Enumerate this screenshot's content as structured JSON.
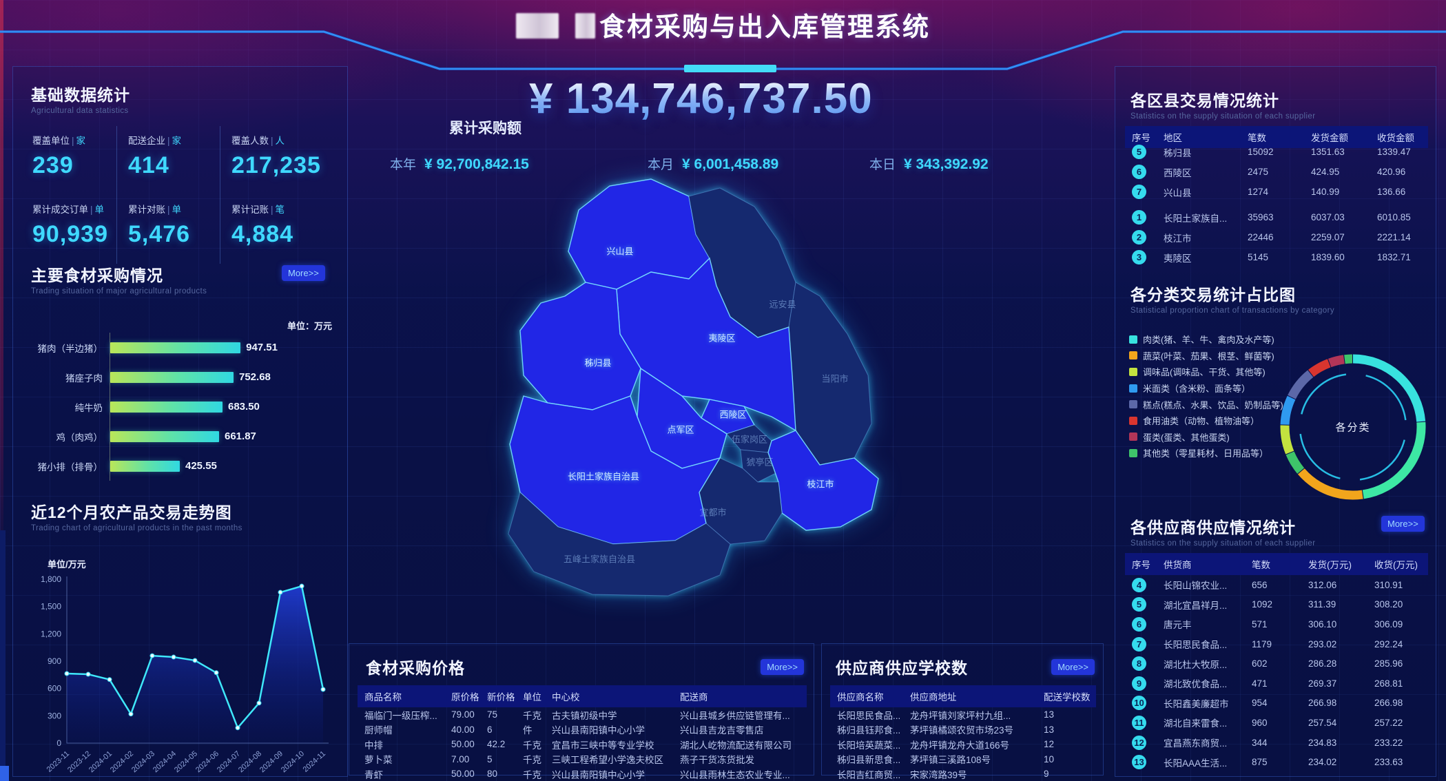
{
  "header": {
    "title": "食材采购与出入库管理系统"
  },
  "summary": {
    "label": "累计采购额",
    "total": "¥ 134,746,737.50",
    "periods": [
      {
        "label": "本年",
        "value": "¥ 92,700,842.15"
      },
      {
        "label": "本月",
        "value": "¥ 6,001,458.89"
      },
      {
        "label": "本日",
        "value": "¥ 343,392.92"
      }
    ]
  },
  "basic": {
    "title": "基础数据统计",
    "subtitle": "Agricultural data statistics",
    "cards": [
      {
        "label": "覆盖单位",
        "unit": "家",
        "value": "239"
      },
      {
        "label": "配送企业",
        "unit": "家",
        "value": "414"
      },
      {
        "label": "覆盖人数",
        "unit": "人",
        "value": "217,235"
      },
      {
        "label": "累计成交订单",
        "unit": "单",
        "value": "90,939"
      },
      {
        "label": "累计对账",
        "unit": "单",
        "value": "5,476"
      },
      {
        "label": "累计记账",
        "unit": "笔",
        "value": "4,884"
      }
    ]
  },
  "chart_data": [
    {
      "id": "main_foods_bar",
      "type": "bar",
      "title": "主要食材采购情况",
      "subtitle": "Trading situation of major agricultural products",
      "more_label": "More>>",
      "unit_label": "单位：万元",
      "categories": [
        "猪肉（半边猪）",
        "猪座子肉",
        "纯牛奶",
        "鸡（肉鸡）",
        "猪小排（排骨）"
      ],
      "values": [
        947.51,
        752.68,
        683.5,
        661.87,
        425.55
      ],
      "value_labels": [
        "947.51",
        "752.68",
        "683.50",
        "661.87",
        "425.55"
      ],
      "xlim": [
        0,
        1000
      ]
    },
    {
      "id": "trend_line",
      "type": "line",
      "title": "近12个月农产品交易走势图",
      "subtitle": "Trading chart of agricultural products in the past months",
      "unit_label": "单位/万元",
      "x": [
        "2023-11",
        "2023-12",
        "2024-01",
        "2024-02",
        "2024-03",
        "2024-04",
        "2024-05",
        "2024-06",
        "2024-07",
        "2024-08",
        "2024-09",
        "2024-10",
        "2024-11"
      ],
      "values": [
        764,
        756,
        698,
        320,
        960,
        945,
        908,
        773,
        168,
        440,
        1656,
        1724,
        590
      ],
      "ylim": [
        0,
        1800
      ],
      "yticks": [
        "0",
        "300",
        "600",
        "900",
        "1,200",
        "1,500",
        "1,800"
      ]
    },
    {
      "id": "category_donut",
      "type": "pie",
      "title": "各分类交易统计占比图",
      "subtitle": "Statistical proportion chart of transactions by category",
      "center_label": "各分类",
      "legend": [
        {
          "name": "肉类(猪、羊、牛、禽肉及水产等)",
          "color": "#38e2df",
          "pct": 47.8
        },
        {
          "name": "蔬菜(叶菜、茄果、根茎、鲜菌等)",
          "color": "#f2a51c",
          "pct": 16.1
        },
        {
          "name": "调味品(调味品、干货、其他等)",
          "color": "#c3e23f",
          "pct": 6.7
        },
        {
          "name": "米面类（含米粉、面条等）",
          "color": "#2f9af0",
          "pct": 6.7
        },
        {
          "name": "糕点(糕点、水果、饮品、奶制品等)",
          "color": "#5c68a8",
          "pct": 7.2
        },
        {
          "name": "食用油类（动物、植物油等）",
          "color": "#d8352f",
          "pct": 5.0
        },
        {
          "name": "蛋类(蛋类、其他蛋类)",
          "color": "#b23558",
          "pct": 3.6
        },
        {
          "name": "其他类（零星耗材、日用品等）",
          "color": "#3ec46a",
          "pct": 6.9
        }
      ],
      "ring": [
        {
          "color": "#38e2df",
          "a0": 0,
          "a1": 86
        },
        {
          "color": "#3de8a4",
          "a0": 86,
          "a1": 172
        },
        {
          "color": "#f2a51c",
          "a0": 172,
          "a1": 230
        },
        {
          "color": "#3ec46a",
          "a0": 230,
          "a1": 248
        },
        {
          "color": "#c3e23f",
          "a0": 248,
          "a1": 272
        },
        {
          "color": "#2f9af0",
          "a0": 272,
          "a1": 296
        },
        {
          "color": "#5c68a8",
          "a0": 296,
          "a1": 322
        },
        {
          "color": "#d8352f",
          "a0": 322,
          "a1": 340
        },
        {
          "color": "#b23558",
          "a0": 340,
          "a1": 353
        },
        {
          "color": "#3ec46a",
          "a0": 353,
          "a1": 360
        }
      ]
    }
  ],
  "map": {
    "name": "宜昌市",
    "labels": [
      {
        "name": "兴山县",
        "bright": true
      },
      {
        "name": "远安县",
        "bright": false
      },
      {
        "name": "夷陵区",
        "bright": true
      },
      {
        "name": "秭归县",
        "bright": true
      },
      {
        "name": "当阳市",
        "bright": false
      },
      {
        "name": "西陵区",
        "bright": true
      },
      {
        "name": "点军区",
        "bright": true
      },
      {
        "name": "伍家岗区",
        "bright": false
      },
      {
        "name": "猇亭区",
        "bright": false
      },
      {
        "name": "长阳土家族自治县",
        "bright": true
      },
      {
        "name": "枝江市",
        "bright": true
      },
      {
        "name": "宜都市",
        "bright": false
      },
      {
        "name": "五峰土家族自治县",
        "bright": false
      }
    ]
  },
  "region_table": {
    "title": "各区县交易情况统计",
    "subtitle": "Statistics on the supply situation of each supplier",
    "columns": [
      "序号",
      "地区",
      "笔数",
      "发货金额",
      "收货金额"
    ],
    "rows": [
      [
        "5",
        "秭归县",
        "15092",
        "1351.63",
        "1339.47"
      ],
      [
        "6",
        "西陵区",
        "2475",
        "424.95",
        "420.96"
      ],
      [
        "7",
        "兴山县",
        "1274",
        "140.99",
        "136.66"
      ],
      [
        "1",
        "长阳土家族自...",
        "35963",
        "6037.03",
        "6010.85"
      ],
      [
        "2",
        "枝江市",
        "22446",
        "2259.07",
        "2221.14"
      ],
      [
        "3",
        "夷陵区",
        "5145",
        "1839.60",
        "1832.71"
      ]
    ]
  },
  "supplier_table": {
    "title": "各供应商供应情况统计",
    "subtitle": "Statistics on the supply situation of each supplier",
    "more_label": "More>>",
    "columns": [
      "序号",
      "供货商",
      "笔数",
      "发货(万元)",
      "收货(万元)"
    ],
    "rows": [
      [
        "4",
        "长阳山锦农业...",
        "656",
        "312.06",
        "310.91"
      ],
      [
        "5",
        "湖北宜昌祥月...",
        "1092",
        "311.39",
        "308.20"
      ],
      [
        "6",
        "唐元丰",
        "571",
        "306.10",
        "306.09"
      ],
      [
        "7",
        "长阳思民食品...",
        "1179",
        "293.02",
        "292.24"
      ],
      [
        "8",
        "湖北杜大牧原...",
        "602",
        "286.28",
        "285.96"
      ],
      [
        "9",
        "湖北致优食品...",
        "471",
        "269.37",
        "268.81"
      ],
      [
        "10",
        "长阳鑫美廉超市",
        "954",
        "266.98",
        "266.98"
      ],
      [
        "11",
        "湖北自来雷食...",
        "960",
        "257.54",
        "257.22"
      ],
      [
        "12",
        "宜昌燕东商贸...",
        "344",
        "234.83",
        "233.22"
      ],
      [
        "13",
        "长阳AAA生活...",
        "875",
        "234.02",
        "233.63"
      ]
    ]
  },
  "price_table": {
    "title": "食材采购价格",
    "more_label": "More>>",
    "columns": [
      "商品名称",
      "原价格",
      "新价格",
      "单位",
      "中心校",
      "配送商"
    ],
    "rows": [
      [
        "福临门一级压榨...",
        "79.00",
        "75",
        "千克",
        "古夫镇初级中学",
        "兴山县城乡供应链管理有..."
      ],
      [
        "厨师帽",
        "40.00",
        "6",
        "件",
        "兴山县南阳镇中心小学",
        "兴山县吉龙吉零售店"
      ],
      [
        "中排",
        "50.00",
        "42.2",
        "千克",
        "宜昌市三峡中等专业学校",
        "湖北人屹物流配送有限公司"
      ],
      [
        "萝卜菜",
        "7.00",
        "5",
        "千克",
        "三峡工程希望小学逸夫校区",
        "燕子干货冻货批发"
      ],
      [
        "青虾",
        "50.00",
        "80",
        "千克",
        "兴山县南阳镇中心小学",
        "兴山县雨林生态农业专业..."
      ]
    ]
  },
  "school_table": {
    "title": "供应商供应学校数",
    "more_label": "More>>",
    "columns": [
      "供应商名称",
      "供应商地址",
      "配送学校数"
    ],
    "rows": [
      [
        "长阳思民食品...",
        "龙舟坪镇刘家坪村九组...",
        "13"
      ],
      [
        "秭归县钰邦食...",
        "茅坪镇橘颂农贸市场23号",
        "13"
      ],
      [
        "长阳培英蔬菜...",
        "龙舟坪镇龙舟大道166号",
        "12"
      ],
      [
        "秭归县新思食...",
        "茅坪镇三溪路108号",
        "10"
      ],
      [
        "长阳吉红商贸...",
        "宋家湾路39号",
        "9"
      ]
    ]
  }
}
